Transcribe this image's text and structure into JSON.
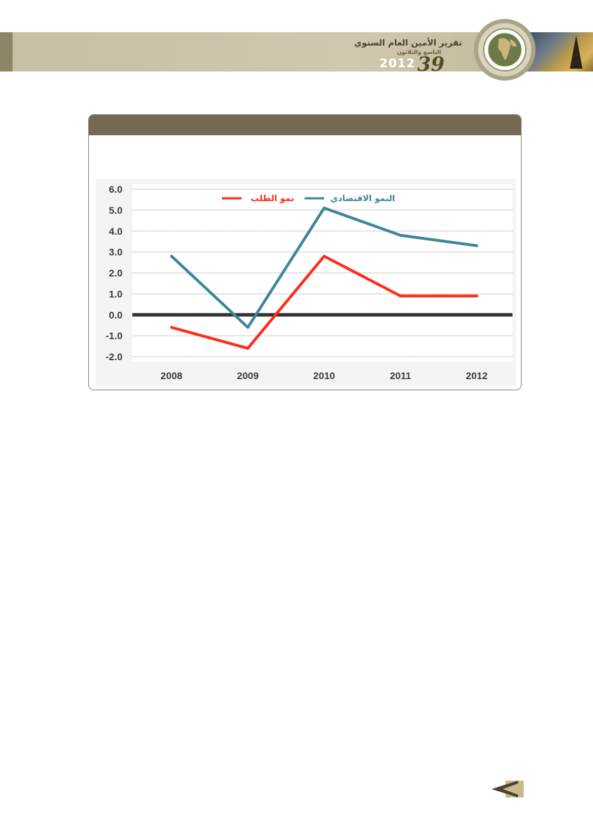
{
  "header": {
    "title": "تقرير الأمين العام السنوي",
    "subtitle": "التاسع والثلاثون",
    "year": "2012",
    "edition": "39"
  },
  "chart_data": {
    "type": "line",
    "x": [
      "2008",
      "2009",
      "2010",
      "2011",
      "2012"
    ],
    "yticks": [
      "6.0",
      "5.0",
      "4.0",
      "3.0",
      "2.0",
      "1.0",
      "0.0",
      "-1.0",
      "-2.0"
    ],
    "ylim": [
      -2.0,
      6.0
    ],
    "grid": true,
    "legend_position": "top",
    "series": [
      {
        "name": "نمو الطلب",
        "color": "#ff2a1a",
        "values": [
          -0.6,
          -1.6,
          2.8,
          0.9,
          0.9
        ]
      },
      {
        "name": "النمو الاقتصادي",
        "color": "#3d8598",
        "values": [
          2.8,
          -0.6,
          5.1,
          3.8,
          3.3
        ]
      }
    ]
  },
  "colors": {
    "header_band": "#c9c1a6",
    "panel_header": "#746754",
    "zero_line": "#333333"
  },
  "icons": {
    "emblem": "globe-icon",
    "nav": "back-arrow-icon"
  }
}
